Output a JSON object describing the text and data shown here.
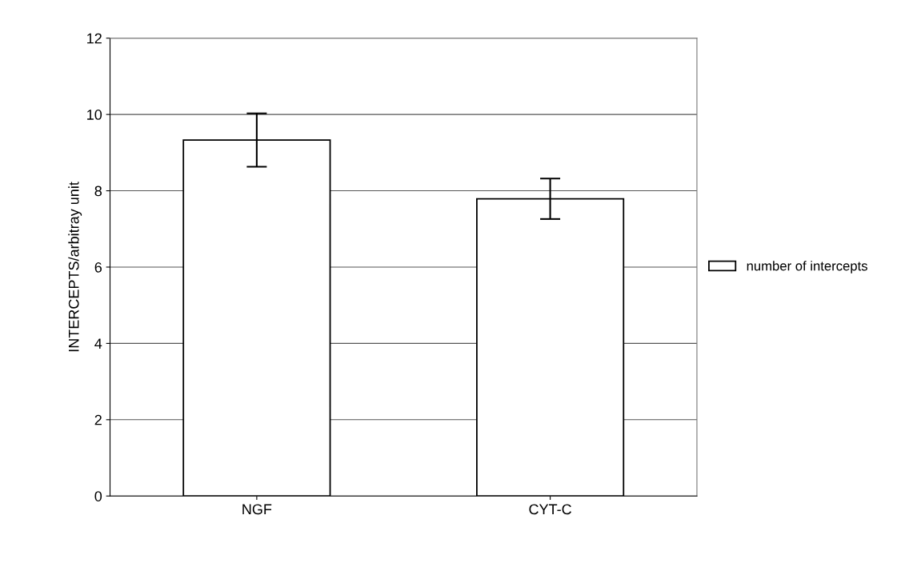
{
  "chart_data": {
    "type": "bar",
    "ylabel": "INTERCEPTS/arbitray unit",
    "categories": [
      "NGF",
      "CYT-C"
    ],
    "series": [
      {
        "name": "number of intercepts",
        "color": "#ffffff",
        "values": [
          9.33,
          7.79
        ],
        "errors": [
          0.7,
          0.53
        ]
      }
    ],
    "ylim": [
      0,
      12
    ],
    "yticks": [
      0,
      2,
      4,
      6,
      8,
      10,
      12
    ],
    "grid": "y",
    "legend": "right"
  }
}
